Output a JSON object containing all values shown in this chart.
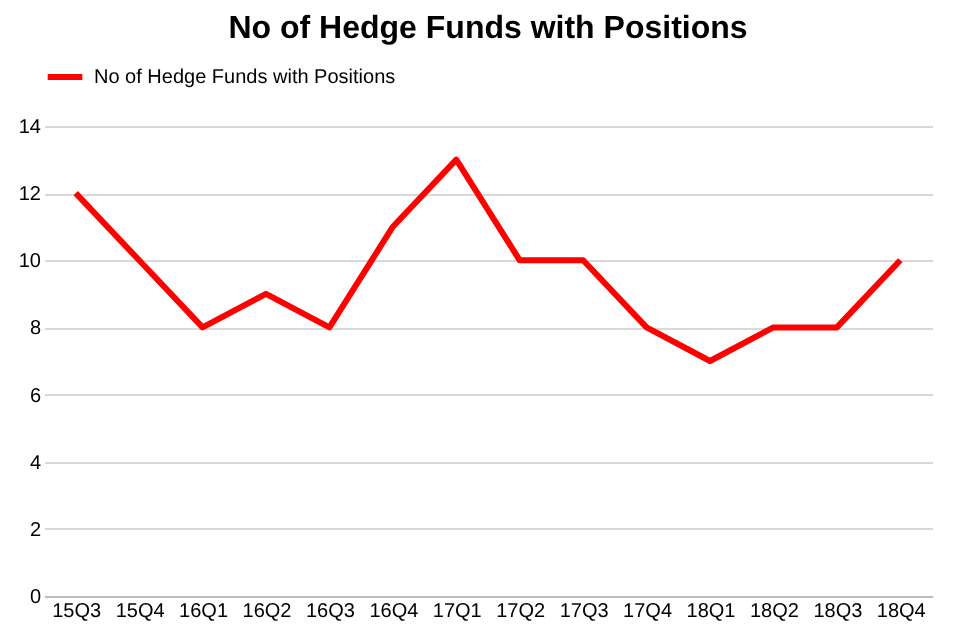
{
  "chart_data": {
    "type": "line",
    "title": "No of Hedge Funds with Positions",
    "categories": [
      "15Q3",
      "15Q4",
      "16Q1",
      "16Q2",
      "16Q3",
      "16Q4",
      "17Q1",
      "17Q2",
      "17Q3",
      "17Q4",
      "18Q1",
      "18Q2",
      "18Q3",
      "18Q4"
    ],
    "series": [
      {
        "name": "No of Hedge Funds with Positions",
        "color": "#ff0000",
        "values": [
          12,
          10,
          8,
          9,
          8,
          11,
          13,
          10,
          10,
          8,
          7,
          8,
          8,
          10
        ]
      }
    ],
    "ylim": [
      0,
      14
    ],
    "yticks": [
      0,
      2,
      4,
      6,
      8,
      10,
      12,
      14
    ],
    "grid": "y",
    "legend": "top",
    "marker": "none",
    "line_style": "solid"
  }
}
